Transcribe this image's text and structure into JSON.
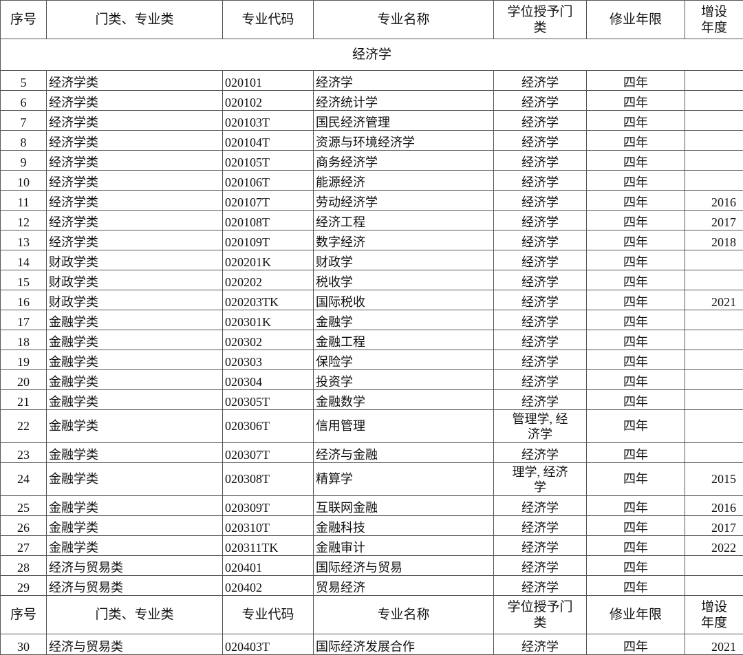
{
  "headers": [
    "序号",
    "门类、专业类",
    "专业代码",
    "专业名称",
    "学位授予门类",
    "修业年限",
    "增设年度"
  ],
  "section_title": "经济学",
  "rows_before": [
    {
      "no": "5",
      "category": "经济学类",
      "code": "020101",
      "name": "经济学",
      "degree": "经济学",
      "years": "四年",
      "added": ""
    },
    {
      "no": "6",
      "category": "经济学类",
      "code": "020102",
      "name": "经济统计学",
      "degree": "经济学",
      "years": "四年",
      "added": ""
    },
    {
      "no": "7",
      "category": "经济学类",
      "code": "020103T",
      "name": "国民经济管理",
      "degree": "经济学",
      "years": "四年",
      "added": ""
    },
    {
      "no": "8",
      "category": "经济学类",
      "code": "020104T",
      "name": "资源与环境经济学",
      "degree": "经济学",
      "years": "四年",
      "added": ""
    },
    {
      "no": "9",
      "category": "经济学类",
      "code": "020105T",
      "name": "商务经济学",
      "degree": "经济学",
      "years": "四年",
      "added": ""
    },
    {
      "no": "10",
      "category": "经济学类",
      "code": "020106T",
      "name": "能源经济",
      "degree": "经济学",
      "years": "四年",
      "added": ""
    },
    {
      "no": "11",
      "category": "经济学类",
      "code": "020107T",
      "name": "劳动经济学",
      "degree": "经济学",
      "years": "四年",
      "added": "2016"
    },
    {
      "no": "12",
      "category": "经济学类",
      "code": "020108T",
      "name": "经济工程",
      "degree": "经济学",
      "years": "四年",
      "added": "2017"
    },
    {
      "no": "13",
      "category": "经济学类",
      "code": "020109T",
      "name": "数字经济",
      "degree": "经济学",
      "years": "四年",
      "added": "2018"
    },
    {
      "no": "14",
      "category": "财政学类",
      "code": "020201K",
      "name": "财政学",
      "degree": "经济学",
      "years": "四年",
      "added": ""
    },
    {
      "no": "15",
      "category": "财政学类",
      "code": "020202",
      "name": "税收学",
      "degree": "经济学",
      "years": "四年",
      "added": ""
    },
    {
      "no": "16",
      "category": "财政学类",
      "code": "020203TK",
      "name": "国际税收",
      "degree": "经济学",
      "years": "四年",
      "added": "2021"
    },
    {
      "no": "17",
      "category": "金融学类",
      "code": "020301K",
      "name": "金融学",
      "degree": "经济学",
      "years": "四年",
      "added": ""
    },
    {
      "no": "18",
      "category": "金融学类",
      "code": "020302",
      "name": "金融工程",
      "degree": "经济学",
      "years": "四年",
      "added": ""
    },
    {
      "no": "19",
      "category": "金融学类",
      "code": "020303",
      "name": "保险学",
      "degree": "经济学",
      "years": "四年",
      "added": ""
    },
    {
      "no": "20",
      "category": "金融学类",
      "code": "020304",
      "name": "投资学",
      "degree": "经济学",
      "years": "四年",
      "added": ""
    },
    {
      "no": "21",
      "category": "金融学类",
      "code": "020305T",
      "name": "金融数学",
      "degree": "经济学",
      "years": "四年",
      "added": ""
    },
    {
      "no": "22",
      "category": "金融学类",
      "code": "020306T",
      "name": "信用管理",
      "degree": "管理学, 经济学",
      "years": "四年",
      "added": "",
      "tall": true
    },
    {
      "no": "23",
      "category": "金融学类",
      "code": "020307T",
      "name": "经济与金融",
      "degree": "经济学",
      "years": "四年",
      "added": ""
    },
    {
      "no": "24",
      "category": "金融学类",
      "code": "020308T",
      "name": "精算学",
      "degree": "理学, 经济学",
      "years": "四年",
      "added": "2015",
      "tall": true
    },
    {
      "no": "25",
      "category": "金融学类",
      "code": "020309T",
      "name": "互联网金融",
      "degree": "经济学",
      "years": "四年",
      "added": "2016"
    },
    {
      "no": "26",
      "category": "金融学类",
      "code": "020310T",
      "name": "金融科技",
      "degree": "经济学",
      "years": "四年",
      "added": "2017"
    },
    {
      "no": "27",
      "category": "金融学类",
      "code": "020311TK",
      "name": "金融审计",
      "degree": "经济学",
      "years": "四年",
      "added": "2022"
    },
    {
      "no": "28",
      "category": "经济与贸易类",
      "code": "020401",
      "name": "国际经济与贸易",
      "degree": "经济学",
      "years": "四年",
      "added": ""
    },
    {
      "no": "29",
      "category": "经济与贸易类",
      "code": "020402",
      "name": "贸易经济",
      "degree": "经济学",
      "years": "四年",
      "added": ""
    }
  ],
  "rows_after": [
    {
      "no": "30",
      "category": "经济与贸易类",
      "code": "020403T",
      "name": "国际经济发展合作",
      "degree": "经济学",
      "years": "四年",
      "added": "2021"
    }
  ]
}
